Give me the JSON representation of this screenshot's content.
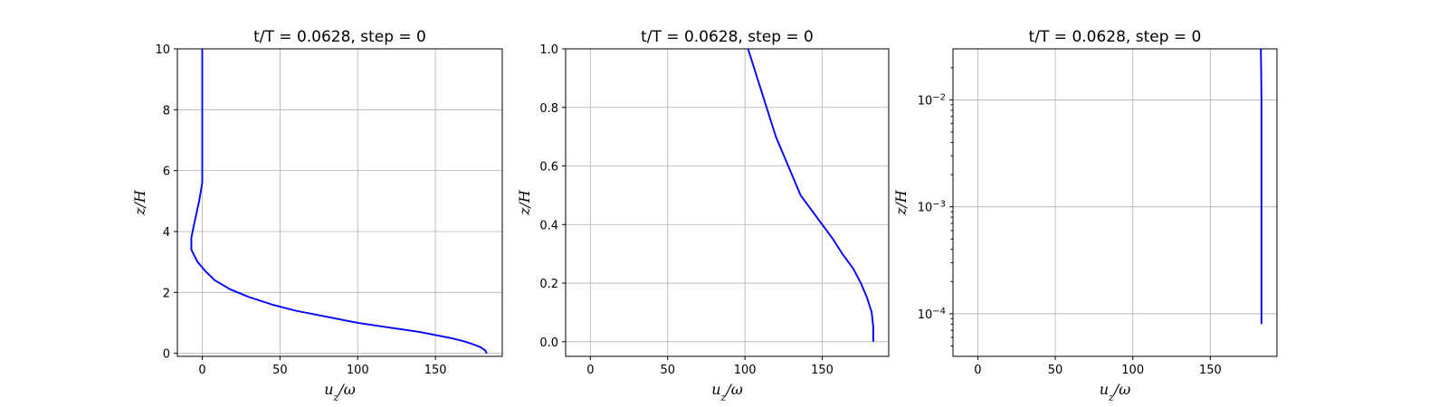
{
  "chart_data": [
    {
      "type": "line",
      "title": "t/T = 0.0628, step = 0",
      "xlabel": "u_z/ω",
      "ylabel": "z/H",
      "xlim": [
        -16,
        193
      ],
      "ylim": [
        -0.1,
        10
      ],
      "yscale": "linear",
      "grid": true,
      "xticks": [
        0,
        50,
        100,
        150
      ],
      "yticks": [
        0,
        2,
        4,
        6,
        8,
        10
      ],
      "line_color": "#0000ff",
      "series": [
        {
          "x": [
            183,
            182,
            179,
            174,
            168,
            160,
            150,
            140,
            120,
            100,
            80,
            60,
            45,
            30,
            18,
            8,
            2,
            -3,
            -7,
            -7,
            -5,
            -2,
            0,
            0,
            0,
            0,
            0
          ],
          "y": [
            0.0,
            0.1,
            0.2,
            0.3,
            0.4,
            0.5,
            0.6,
            0.7,
            0.85,
            1.0,
            1.2,
            1.4,
            1.6,
            1.85,
            2.1,
            2.4,
            2.7,
            3.0,
            3.4,
            3.8,
            4.3,
            5.0,
            5.6,
            6.2,
            7.5,
            9.0,
            10.0
          ]
        }
      ]
    },
    {
      "type": "line",
      "title": "t/T = 0.0628, step = 0",
      "xlabel": "u_z/ω",
      "ylabel": "z/H",
      "xlim": [
        -16,
        193
      ],
      "ylim": [
        -0.05,
        1.0
      ],
      "yscale": "linear",
      "grid": true,
      "xticks": [
        0,
        50,
        100,
        150
      ],
      "yticks": [
        "0.0",
        "0.2",
        "0.4",
        "0.6",
        "0.8",
        "1.0"
      ],
      "line_color": "#0000ff",
      "series": [
        {
          "x": [
            183,
            183,
            182,
            179,
            175,
            170,
            163,
            157,
            150,
            143,
            136,
            128,
            120,
            111,
            102
          ],
          "y": [
            0.0,
            0.05,
            0.1,
            0.15,
            0.2,
            0.25,
            0.3,
            0.35,
            0.4,
            0.45,
            0.5,
            0.6,
            0.7,
            0.85,
            1.0
          ]
        }
      ]
    },
    {
      "type": "line",
      "title": "t/T = 0.0628, step = 0",
      "xlabel": "u_z/ω",
      "ylabel": "z/H",
      "xlim": [
        -16,
        193
      ],
      "ylim": [
        4e-05,
        0.03
      ],
      "yscale": "log",
      "grid": true,
      "xticks": [
        0,
        50,
        100,
        150
      ],
      "yticks": [
        0.0001,
        0.001,
        0.01
      ],
      "ytick_labels": [
        {
          "base": "10",
          "exp": "−4"
        },
        {
          "base": "10",
          "exp": "−3"
        },
        {
          "base": "10",
          "exp": "−2"
        }
      ],
      "line_color": "#0000ff",
      "series": [
        {
          "x": [
            183,
            183,
            183,
            183,
            183,
            183,
            182.8,
            182.6
          ],
          "y": [
            8e-05,
            0.0001,
            0.0003,
            0.001,
            0.003,
            0.01,
            0.02,
            0.03
          ]
        }
      ]
    }
  ]
}
